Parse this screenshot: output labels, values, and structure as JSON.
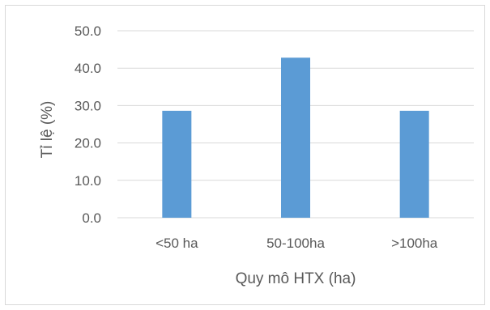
{
  "chart_data": {
    "type": "bar",
    "title": "",
    "xlabel": "Quy mô HTX (ha)",
    "ylabel": "Tỉ lệ (%)",
    "categories": [
      "<50 ha",
      "50-100ha",
      ">100ha"
    ],
    "values": [
      28.6,
      42.8,
      28.6
    ],
    "ylim": [
      0,
      50
    ],
    "yticks": [
      "0.0",
      "10.0",
      "20.0",
      "30.0",
      "40.0",
      "50.0"
    ],
    "grid": true,
    "colors": {
      "bar": "#5b9bd5",
      "grid": "#d9d9d9",
      "text": "#595959"
    }
  }
}
